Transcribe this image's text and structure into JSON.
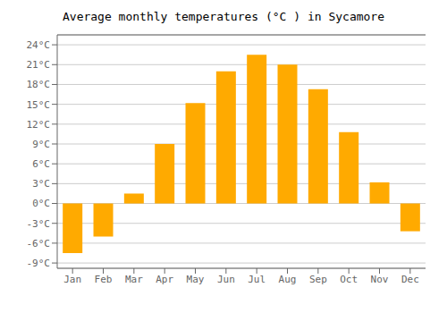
{
  "chart_data": {
    "type": "bar",
    "title": "Average monthly temperatures (°C ) in Sycamore",
    "categories": [
      "Jan",
      "Feb",
      "Mar",
      "Apr",
      "May",
      "Jun",
      "Jul",
      "Aug",
      "Sep",
      "Oct",
      "Nov",
      "Dec"
    ],
    "values": [
      -7.5,
      -5.0,
      1.5,
      9.0,
      15.2,
      20.0,
      22.5,
      21.0,
      17.3,
      10.8,
      3.2,
      -4.2
    ],
    "color": "#FFAA00",
    "ylim": [
      -9.8,
      25.5
    ],
    "yticks": [
      {
        "value": -9,
        "label": "-9°C"
      },
      {
        "value": -6,
        "label": "-6°C"
      },
      {
        "value": -3,
        "label": "-3°C"
      },
      {
        "value": 0,
        "label": "0°C"
      },
      {
        "value": 3,
        "label": "3°C"
      },
      {
        "value": 6,
        "label": "6°C"
      },
      {
        "value": 9,
        "label": "9°C"
      },
      {
        "value": 12,
        "label": "12°C"
      },
      {
        "value": 15,
        "label": "15°C"
      },
      {
        "value": 18,
        "label": "18°C"
      },
      {
        "value": 21,
        "label": "21°C"
      },
      {
        "value": 24,
        "label": "24°C"
      }
    ],
    "grid": true
  }
}
